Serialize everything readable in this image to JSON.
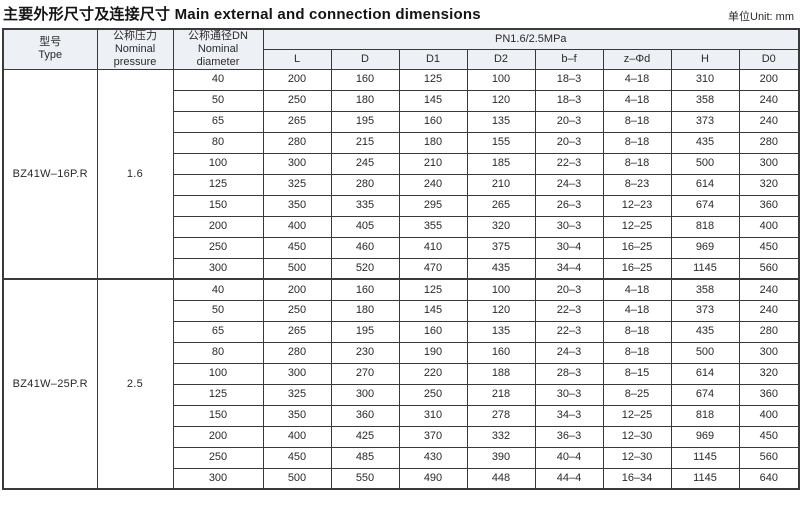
{
  "page": {
    "title_zh": "主要外形尺寸及连接尺寸",
    "title_en": "Main external and connection dimensions",
    "unit_label": "单位Unit: mm"
  },
  "table": {
    "headers": {
      "type_zh": "型号",
      "type_en": "Type",
      "pressure_zh": "公称压力",
      "pressure_en_line1": "Nominal",
      "pressure_en_line2": "pressure",
      "dn_zh": "公称通径DN",
      "dn_en_line1": "Nominal",
      "dn_en_line2": "diameter",
      "pn_span": "PN1.6/2.5MPa",
      "columns": [
        "L",
        "D",
        "D1",
        "D2",
        "b–f",
        "z–Φd",
        "H",
        "D0"
      ]
    },
    "groups": [
      {
        "type": "BZ41W–16P.R",
        "pressure": "1.6",
        "rows": [
          [
            "40",
            "200",
            "160",
            "125",
            "100",
            "18–3",
            "4–18",
            "310",
            "200"
          ],
          [
            "50",
            "250",
            "180",
            "145",
            "120",
            "18–3",
            "4–18",
            "358",
            "240"
          ],
          [
            "65",
            "265",
            "195",
            "160",
            "135",
            "20–3",
            "8–18",
            "373",
            "240"
          ],
          [
            "80",
            "280",
            "215",
            "180",
            "155",
            "20–3",
            "8–18",
            "435",
            "280"
          ],
          [
            "100",
            "300",
            "245",
            "210",
            "185",
            "22–3",
            "8–18",
            "500",
            "300"
          ],
          [
            "125",
            "325",
            "280",
            "240",
            "210",
            "24–3",
            "8–23",
            "614",
            "320"
          ],
          [
            "150",
            "350",
            "335",
            "295",
            "265",
            "26–3",
            "12–23",
            "674",
            "360"
          ],
          [
            "200",
            "400",
            "405",
            "355",
            "320",
            "30–3",
            "12–25",
            "818",
            "400"
          ],
          [
            "250",
            "450",
            "460",
            "410",
            "375",
            "30–4",
            "16–25",
            "969",
            "450"
          ],
          [
            "300",
            "500",
            "520",
            "470",
            "435",
            "34–4",
            "16–25",
            "1145",
            "560"
          ]
        ]
      },
      {
        "type": "BZ41W–25P.R",
        "pressure": "2.5",
        "rows": [
          [
            "40",
            "200",
            "160",
            "125",
            "100",
            "20–3",
            "4–18",
            "358",
            "240"
          ],
          [
            "50",
            "250",
            "180",
            "145",
            "120",
            "22–3",
            "4–18",
            "373",
            "240"
          ],
          [
            "65",
            "265",
            "195",
            "160",
            "135",
            "22–3",
            "8–18",
            "435",
            "280"
          ],
          [
            "80",
            "280",
            "230",
            "190",
            "160",
            "24–3",
            "8–18",
            "500",
            "300"
          ],
          [
            "100",
            "300",
            "270",
            "220",
            "188",
            "28–3",
            "8–15",
            "614",
            "320"
          ],
          [
            "125",
            "325",
            "300",
            "250",
            "218",
            "30–3",
            "8–25",
            "674",
            "360"
          ],
          [
            "150",
            "350",
            "360",
            "310",
            "278",
            "34–3",
            "12–25",
            "818",
            "400"
          ],
          [
            "200",
            "400",
            "425",
            "370",
            "332",
            "36–3",
            "12–30",
            "969",
            "450"
          ],
          [
            "250",
            "450",
            "485",
            "430",
            "390",
            "40–4",
            "12–30",
            "1145",
            "560"
          ],
          [
            "300",
            "500",
            "550",
            "490",
            "448",
            "44–4",
            "16–34",
            "1145",
            "640"
          ]
        ]
      }
    ]
  }
}
